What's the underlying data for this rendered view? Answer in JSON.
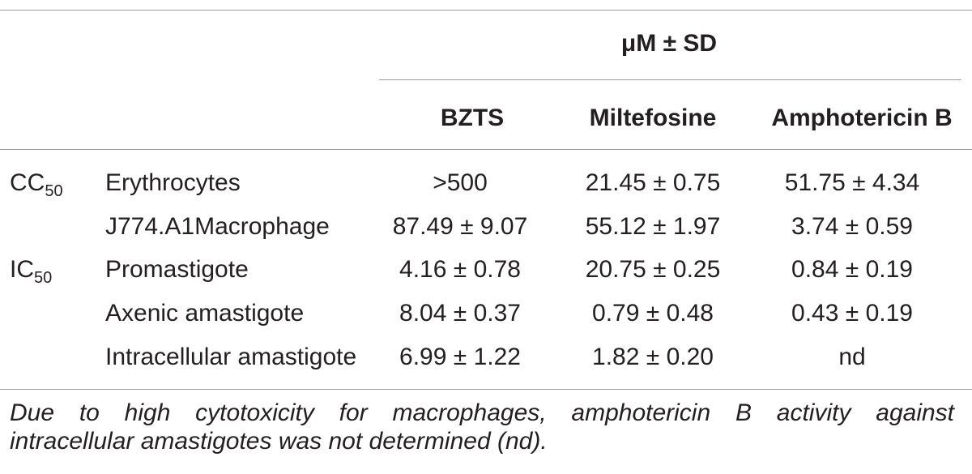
{
  "table": {
    "spanning_header": "μM ± SD",
    "columns": [
      "BZTS",
      "Miltefosine",
      "Amphotericin B"
    ],
    "groups": [
      {
        "name": "CC",
        "subscript": "50"
      },
      {
        "name": "IC",
        "subscript": "50"
      }
    ],
    "rows": [
      {
        "group": "CC50",
        "label": "Erythrocytes",
        "values": [
          ">500",
          "21.45 ± 0.75",
          "51.75 ± 4.34"
        ]
      },
      {
        "group": "",
        "label": "J774.A1Macrophage",
        "values": [
          "87.49 ± 9.07",
          "55.12 ± 1.97",
          "3.74 ± 0.59"
        ]
      },
      {
        "group": "IC50",
        "label": "Promastigote",
        "values": [
          "4.16 ± 0.78",
          "20.75 ± 0.25",
          "0.84 ± 0.19"
        ]
      },
      {
        "group": "",
        "label": "Axenic amastigote",
        "values": [
          "8.04 ± 0.37",
          "0.79 ± 0.48",
          "0.43 ± 0.19"
        ]
      },
      {
        "group": "",
        "label": "Intracellular amastigote",
        "values": [
          "6.99 ± 1.22",
          "1.82 ± 0.20",
          "nd"
        ]
      }
    ]
  },
  "footnote": {
    "line1": "Due to high cytotoxicity for macrophages, amphotericin B activity against",
    "line2": "intracellular amastigotes was not determined (nd)."
  }
}
